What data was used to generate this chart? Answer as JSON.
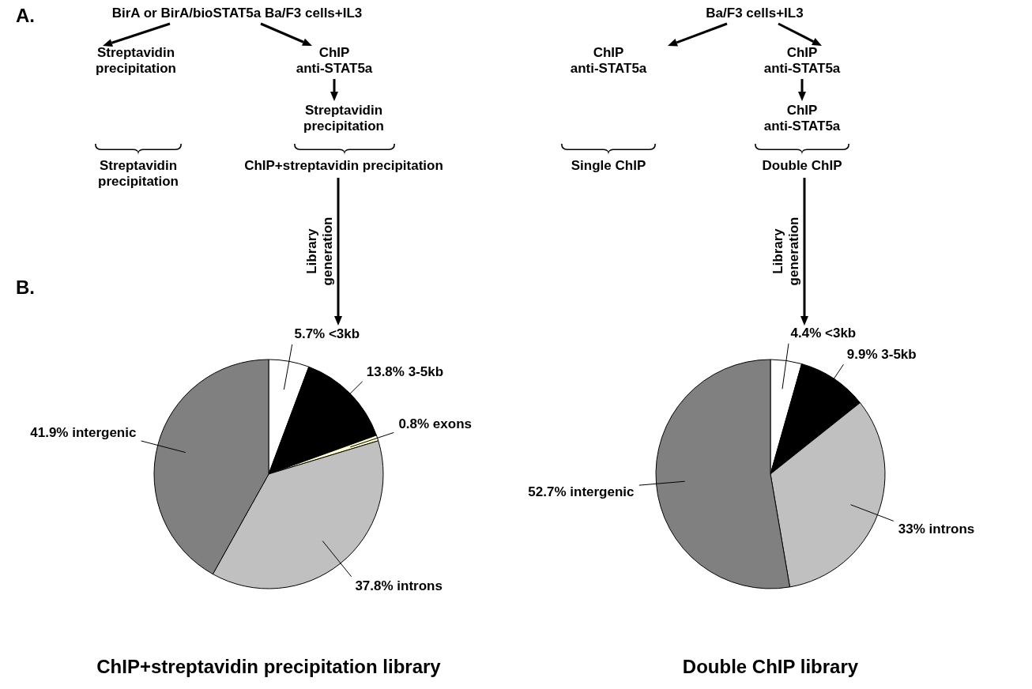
{
  "chart_data": [
    {
      "type": "other",
      "annotations": [
        "A.",
        "BirA or BirA/bioSTAT5a Ba/F3 cells+IL3",
        "Streptavidin precipitation",
        "ChIP anti-STAT5a",
        "Streptavidin precipitation",
        "Streptavidin precipitation",
        "ChIP+streptavidin precipitation",
        "Library generation",
        "Ba/F3 cells+IL3",
        "ChIP anti-STAT5a",
        "ChIP anti-STAT5a",
        "ChIP anti-STAT5a",
        "Single ChIP",
        "Double ChIP",
        "Library generation",
        "B."
      ]
    },
    {
      "type": "pie",
      "title": "ChIP+streptavidin precipitation library",
      "categories": [
        "5.7% <3kb",
        "13.8% 3-5kb",
        "0.8% exons",
        "37.8% introns",
        "41.9% intergenic"
      ],
      "values": [
        5.7,
        13.8,
        0.8,
        37.8,
        41.9
      ],
      "colors": [
        "#ffffff",
        "#000000",
        "#ffffcc",
        "#c0c0c0",
        "#808080"
      ]
    },
    {
      "type": "pie",
      "title": "Double ChIP library",
      "categories": [
        "4.4% <3kb",
        "9.9% 3-5kb",
        "33% introns",
        "52.7% intergenic"
      ],
      "values": [
        4.4,
        9.9,
        33,
        52.7
      ],
      "colors": [
        "#ffffff",
        "#000000",
        "#c0c0c0",
        "#808080"
      ]
    }
  ]
}
